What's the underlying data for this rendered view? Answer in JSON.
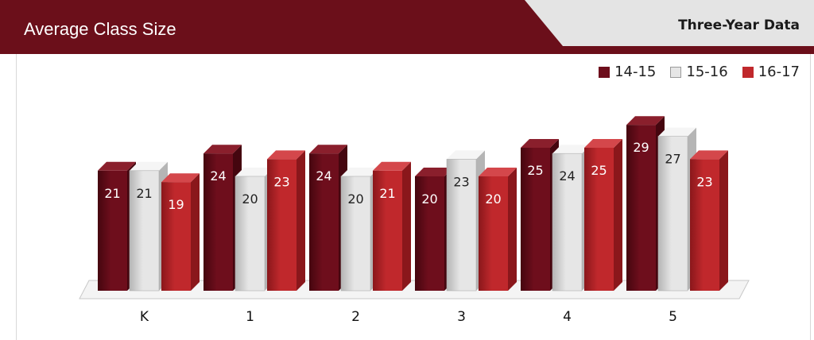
{
  "header": {
    "title": "Average Class Size",
    "subtitle": "Three-Year Data"
  },
  "colors": {
    "header_bg": "#6b0f1a",
    "tab_bg": "#e4e4e4",
    "series_1": "#6e0e1c",
    "series_2": "#e6e6e6",
    "series_3": "#c0282c"
  },
  "chart_data": {
    "type": "bar",
    "categories": [
      "K",
      "1",
      "2",
      "3",
      "4",
      "5"
    ],
    "series": [
      {
        "name": "14-15",
        "values": [
          21,
          24,
          24,
          20,
          25,
          29
        ]
      },
      {
        "name": "15-16",
        "values": [
          21,
          20,
          20,
          23,
          24,
          27
        ]
      },
      {
        "name": "16-17",
        "values": [
          19,
          23,
          21,
          20,
          25,
          23
        ]
      }
    ],
    "ylim": [
      0,
      30
    ],
    "grid": false,
    "legend_position": "top-right",
    "data_labels": true,
    "style": "3d-column"
  }
}
